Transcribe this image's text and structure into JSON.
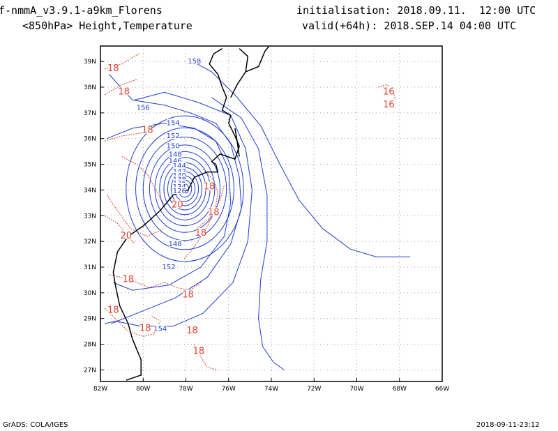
{
  "header": {
    "model_line": "f-nmmA_v3.9.1-a9km_Florens",
    "init_line": "initialisation: 2018.09.11.  12:00 UTC",
    "field_line": "<850hPa> Height,Temperature",
    "valid_line": "valid(+64h): 2018.SEP.14 04:00 UTC"
  },
  "footer": {
    "credit": "GrADS: COLA/IGES",
    "timestamp": "2018-09-11-23:12"
  },
  "map": {
    "lat_labels": [
      "39N",
      "38N",
      "37N",
      "36N",
      "35N",
      "34N",
      "33N",
      "32N",
      "31N",
      "30N",
      "29N",
      "28N",
      "27N"
    ],
    "lon_labels": [
      "82W",
      "80W",
      "78W",
      "76W",
      "74W",
      "72W",
      "70W",
      "68W",
      "66W"
    ],
    "lat_range": [
      26.55,
      39.6
    ],
    "lon_range": [
      -82,
      -66
    ],
    "grid": "dotted",
    "height_color": "#1e3cd2",
    "temp_color": "#e0402a",
    "coast_color": "#000000",
    "height_labels": [
      {
        "text": "158",
        "lon": -77.6,
        "lat": 39.0
      },
      {
        "text": "156",
        "lon": -80.0,
        "lat": 37.2
      },
      {
        "text": "154",
        "lon": -78.6,
        "lat": 36.6
      },
      {
        "text": "152",
        "lon": -78.6,
        "lat": 36.1
      },
      {
        "text": "150",
        "lon": -78.6,
        "lat": 35.7
      },
      {
        "text": "148",
        "lon": -78.5,
        "lat": 35.38
      },
      {
        "text": "146",
        "lon": -78.5,
        "lat": 35.12
      },
      {
        "text": "144",
        "lon": -78.3,
        "lat": 34.93
      },
      {
        "text": "142",
        "lon": -78.3,
        "lat": 34.72
      },
      {
        "text": "140",
        "lon": -78.3,
        "lat": 34.55
      },
      {
        "text": "138",
        "lon": -78.3,
        "lat": 34.4
      },
      {
        "text": "136",
        "lon": -78.3,
        "lat": 34.25
      },
      {
        "text": "134",
        "lon": -78.3,
        "lat": 34.12
      },
      {
        "text": "126",
        "lon": -78.3,
        "lat": 33.95
      },
      {
        "text": "148",
        "lon": -78.5,
        "lat": 31.9
      },
      {
        "text": "152",
        "lon": -78.8,
        "lat": 31.0
      },
      {
        "text": "154",
        "lon": -79.2,
        "lat": 28.6
      }
    ],
    "temp_labels": [
      {
        "text": "18",
        "lon": -81.4,
        "lat": 38.7
      },
      {
        "text": "18",
        "lon": -80.9,
        "lat": 37.8
      },
      {
        "text": "18",
        "lon": -79.8,
        "lat": 36.3
      },
      {
        "text": "18",
        "lon": -76.9,
        "lat": 34.1
      },
      {
        "text": "18",
        "lon": -76.7,
        "lat": 33.1
      },
      {
        "text": "20",
        "lon": -78.4,
        "lat": 33.4
      },
      {
        "text": "18",
        "lon": -77.3,
        "lat": 32.3
      },
      {
        "text": "20",
        "lon": -80.8,
        "lat": 32.2
      },
      {
        "text": "18",
        "lon": -80.7,
        "lat": 30.5
      },
      {
        "text": "18",
        "lon": -77.9,
        "lat": 29.9
      },
      {
        "text": "18",
        "lon": -81.4,
        "lat": 29.3
      },
      {
        "text": "18",
        "lon": -79.9,
        "lat": 28.6
      },
      {
        "text": "18",
        "lon": -77.7,
        "lat": 28.5
      },
      {
        "text": "18",
        "lon": -77.4,
        "lat": 27.7
      },
      {
        "text": "16",
        "lon": -68.5,
        "lat": 37.8
      },
      {
        "text": "16",
        "lon": -68.5,
        "lat": 37.3
      }
    ],
    "cyclone_center": {
      "lon": -78.05,
      "lat": 34.05
    }
  }
}
